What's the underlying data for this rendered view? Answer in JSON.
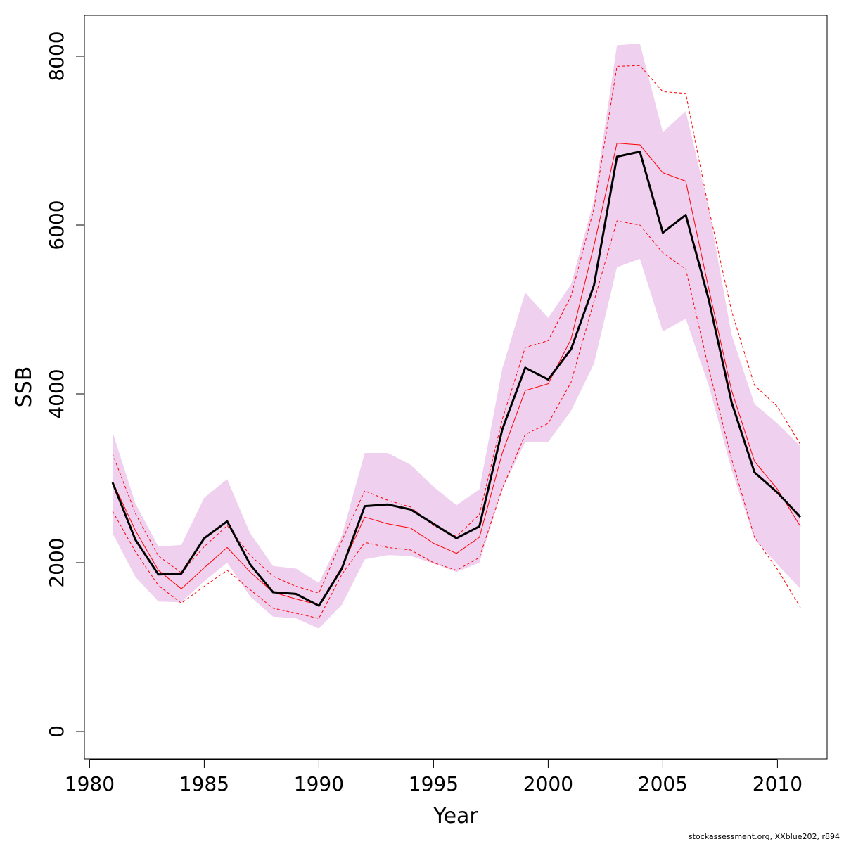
{
  "chart_data": {
    "type": "line",
    "xlabel": "Year",
    "ylabel": "SSB",
    "xlim": [
      1980,
      2012
    ],
    "ylim": [
      0,
      8000
    ],
    "x_ticks": [
      1980,
      1985,
      1990,
      1995,
      2000,
      2005,
      2010
    ],
    "y_ticks": [
      0,
      2000,
      4000,
      6000,
      8000
    ],
    "grid": false,
    "colors": {
      "band": "#efd1ef",
      "median": "#000000",
      "run": "#ff0000"
    },
    "x": [
      1981,
      1982,
      1983,
      1984,
      1985,
      1986,
      1987,
      1988,
      1989,
      1990,
      1991,
      1992,
      1993,
      1994,
      1995,
      1996,
      1997,
      1998,
      1999,
      2000,
      2001,
      2002,
      2003,
      2004,
      2005,
      2006,
      2007,
      2008,
      2009,
      2010,
      2011
    ],
    "series": [
      {
        "role": "band_upper",
        "values": [
          3550,
          2700,
          2190,
          2210,
          2770,
          2990,
          2350,
          1960,
          1930,
          1760,
          2320,
          3300,
          3300,
          3160,
          2900,
          2680,
          2870,
          4300,
          5200,
          4900,
          5300,
          6300,
          8130,
          8150,
          7100,
          7350,
          6200,
          4700,
          3880,
          3650,
          3380
        ]
      },
      {
        "role": "band_lower",
        "values": [
          2350,
          1830,
          1540,
          1530,
          1780,
          2000,
          1600,
          1360,
          1340,
          1220,
          1500,
          2040,
          2090,
          2080,
          1990,
          1890,
          2000,
          2870,
          3430,
          3430,
          3800,
          4360,
          5500,
          5600,
          4740,
          4890,
          4100,
          3100,
          2280,
          1980,
          1690
        ]
      },
      {
        "role": "upper_dashed",
        "values": [
          3290,
          2580,
          2080,
          1880,
          2190,
          2440,
          2090,
          1840,
          1720,
          1640,
          2260,
          2850,
          2740,
          2660,
          2440,
          2310,
          2570,
          3700,
          4550,
          4630,
          5160,
          6200,
          7880,
          7890,
          7580,
          7560,
          6200,
          4980,
          4100,
          3850,
          3400
        ]
      },
      {
        "role": "estimate",
        "values": [
          2960,
          2380,
          1910,
          1690,
          1940,
          2180,
          1890,
          1650,
          1570,
          1500,
          1950,
          2540,
          2460,
          2410,
          2230,
          2110,
          2300,
          3300,
          4040,
          4120,
          4650,
          5760,
          6970,
          6950,
          6620,
          6520,
          5250,
          4040,
          3200,
          2870,
          2430
        ]
      },
      {
        "role": "lower_dashed",
        "values": [
          2610,
          2130,
          1730,
          1520,
          1720,
          1910,
          1680,
          1460,
          1400,
          1340,
          1860,
          2240,
          2180,
          2150,
          2000,
          1910,
          2060,
          2880,
          3520,
          3650,
          4140,
          5100,
          6050,
          6000,
          5670,
          5480,
          4300,
          3230,
          2300,
          1920,
          1470
        ]
      },
      {
        "role": "median",
        "values": [
          2950,
          2270,
          1860,
          1870,
          2290,
          2490,
          1980,
          1650,
          1630,
          1490,
          1930,
          2670,
          2690,
          2630,
          2460,
          2290,
          2430,
          3580,
          4310,
          4170,
          4530,
          5290,
          6810,
          6870,
          5910,
          6120,
          5120,
          3900,
          3070,
          2830,
          2540
        ]
      }
    ]
  },
  "footer": "stockassessment.org, XXblue202, r894"
}
